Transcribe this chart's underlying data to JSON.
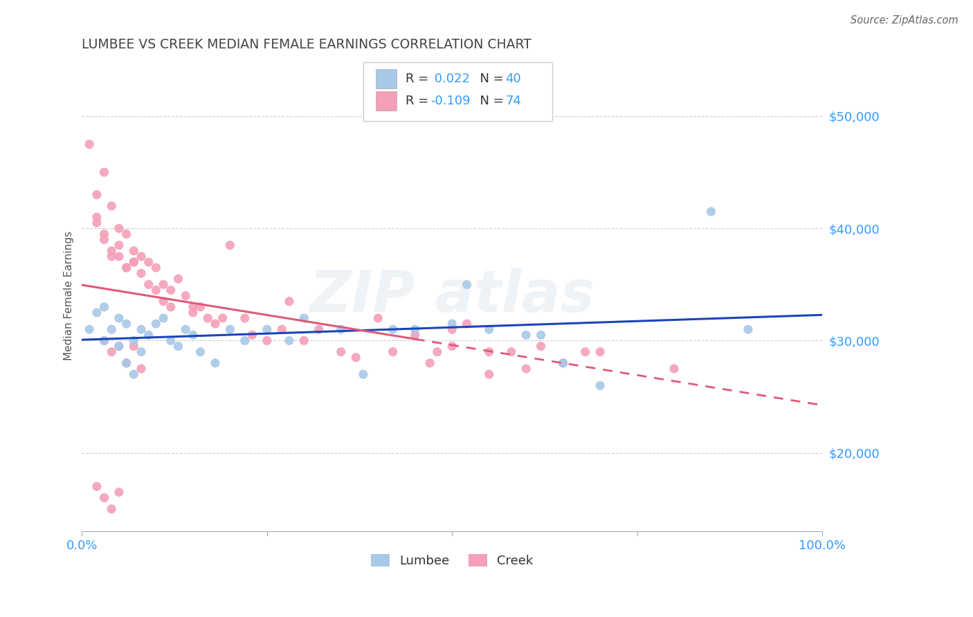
{
  "title": "LUMBEE VS CREEK MEDIAN FEMALE EARNINGS CORRELATION CHART",
  "source": "Source: ZipAtlas.com",
  "ylabel": "Median Female Earnings",
  "xlim": [
    0,
    1.0
  ],
  "ylim": [
    13000,
    55000
  ],
  "xticks": [
    0.0,
    0.25,
    0.5,
    0.75,
    1.0
  ],
  "xticklabels": [
    "0.0%",
    "",
    "",
    "",
    "100.0%"
  ],
  "yticks": [
    20000,
    30000,
    40000,
    50000
  ],
  "yticklabels": [
    "$20,000",
    "$30,000",
    "$40,000",
    "$50,000"
  ],
  "lumbee_color": "#a8c8e8",
  "creek_color": "#f4a0b8",
  "lumbee_line_color": "#1a44bb",
  "creek_line_color": "#e05878",
  "lumbee_R": 0.022,
  "lumbee_N": 40,
  "creek_R": -0.109,
  "creek_N": 74,
  "background_color": "#ffffff",
  "grid_color": "#cccccc",
  "axis_label_color": "#3399ff",
  "title_color": "#444444",
  "lumbee_x": [
    0.01,
    0.02,
    0.03,
    0.03,
    0.04,
    0.05,
    0.05,
    0.06,
    0.07,
    0.08,
    0.08,
    0.09,
    0.1,
    0.11,
    0.12,
    0.13,
    0.14,
    0.15,
    0.16,
    0.18,
    0.2,
    0.22,
    0.25,
    0.28,
    0.3,
    0.35,
    0.38,
    0.42,
    0.45,
    0.5,
    0.52,
    0.55,
    0.6,
    0.62,
    0.65,
    0.7,
    0.85,
    0.9,
    0.06,
    0.07
  ],
  "lumbee_y": [
    31000,
    32500,
    30000,
    33000,
    31000,
    29500,
    32000,
    31500,
    30000,
    31000,
    29000,
    30500,
    31500,
    32000,
    30000,
    29500,
    31000,
    30500,
    29000,
    28000,
    31000,
    30000,
    31000,
    30000,
    32000,
    31000,
    27000,
    31000,
    31000,
    31500,
    35000,
    31000,
    30500,
    30500,
    28000,
    26000,
    41500,
    31000,
    28000,
    27000
  ],
  "creek_x": [
    0.01,
    0.02,
    0.02,
    0.03,
    0.03,
    0.04,
    0.04,
    0.05,
    0.05,
    0.06,
    0.06,
    0.07,
    0.07,
    0.08,
    0.08,
    0.09,
    0.09,
    0.1,
    0.1,
    0.11,
    0.11,
    0.12,
    0.12,
    0.13,
    0.14,
    0.15,
    0.15,
    0.16,
    0.17,
    0.18,
    0.19,
    0.2,
    0.22,
    0.23,
    0.25,
    0.27,
    0.28,
    0.3,
    0.32,
    0.35,
    0.37,
    0.4,
    0.42,
    0.45,
    0.47,
    0.5,
    0.52,
    0.55,
    0.58,
    0.6,
    0.62,
    0.65,
    0.68,
    0.02,
    0.03,
    0.04,
    0.05,
    0.06,
    0.07,
    0.03,
    0.04,
    0.05,
    0.06,
    0.07,
    0.08,
    0.02,
    0.03,
    0.04,
    0.05,
    0.48,
    0.5,
    0.55,
    0.7,
    0.8
  ],
  "creek_y": [
    47500,
    43000,
    40500,
    45000,
    39000,
    38000,
    42000,
    40000,
    37500,
    39500,
    36500,
    38000,
    37000,
    37500,
    36000,
    37000,
    35000,
    36500,
    34500,
    35000,
    33500,
    34500,
    33000,
    35500,
    34000,
    33000,
    32500,
    33000,
    32000,
    31500,
    32000,
    38500,
    32000,
    30500,
    30000,
    31000,
    33500,
    30000,
    31000,
    29000,
    28500,
    32000,
    29000,
    30500,
    28000,
    31000,
    31500,
    29000,
    29000,
    27500,
    29500,
    28000,
    29000,
    41000,
    39500,
    37500,
    38500,
    36500,
    37000,
    30000,
    29000,
    29500,
    28000,
    29500,
    27500,
    17000,
    16000,
    15000,
    16500,
    29000,
    29500,
    27000,
    29000,
    27500
  ]
}
